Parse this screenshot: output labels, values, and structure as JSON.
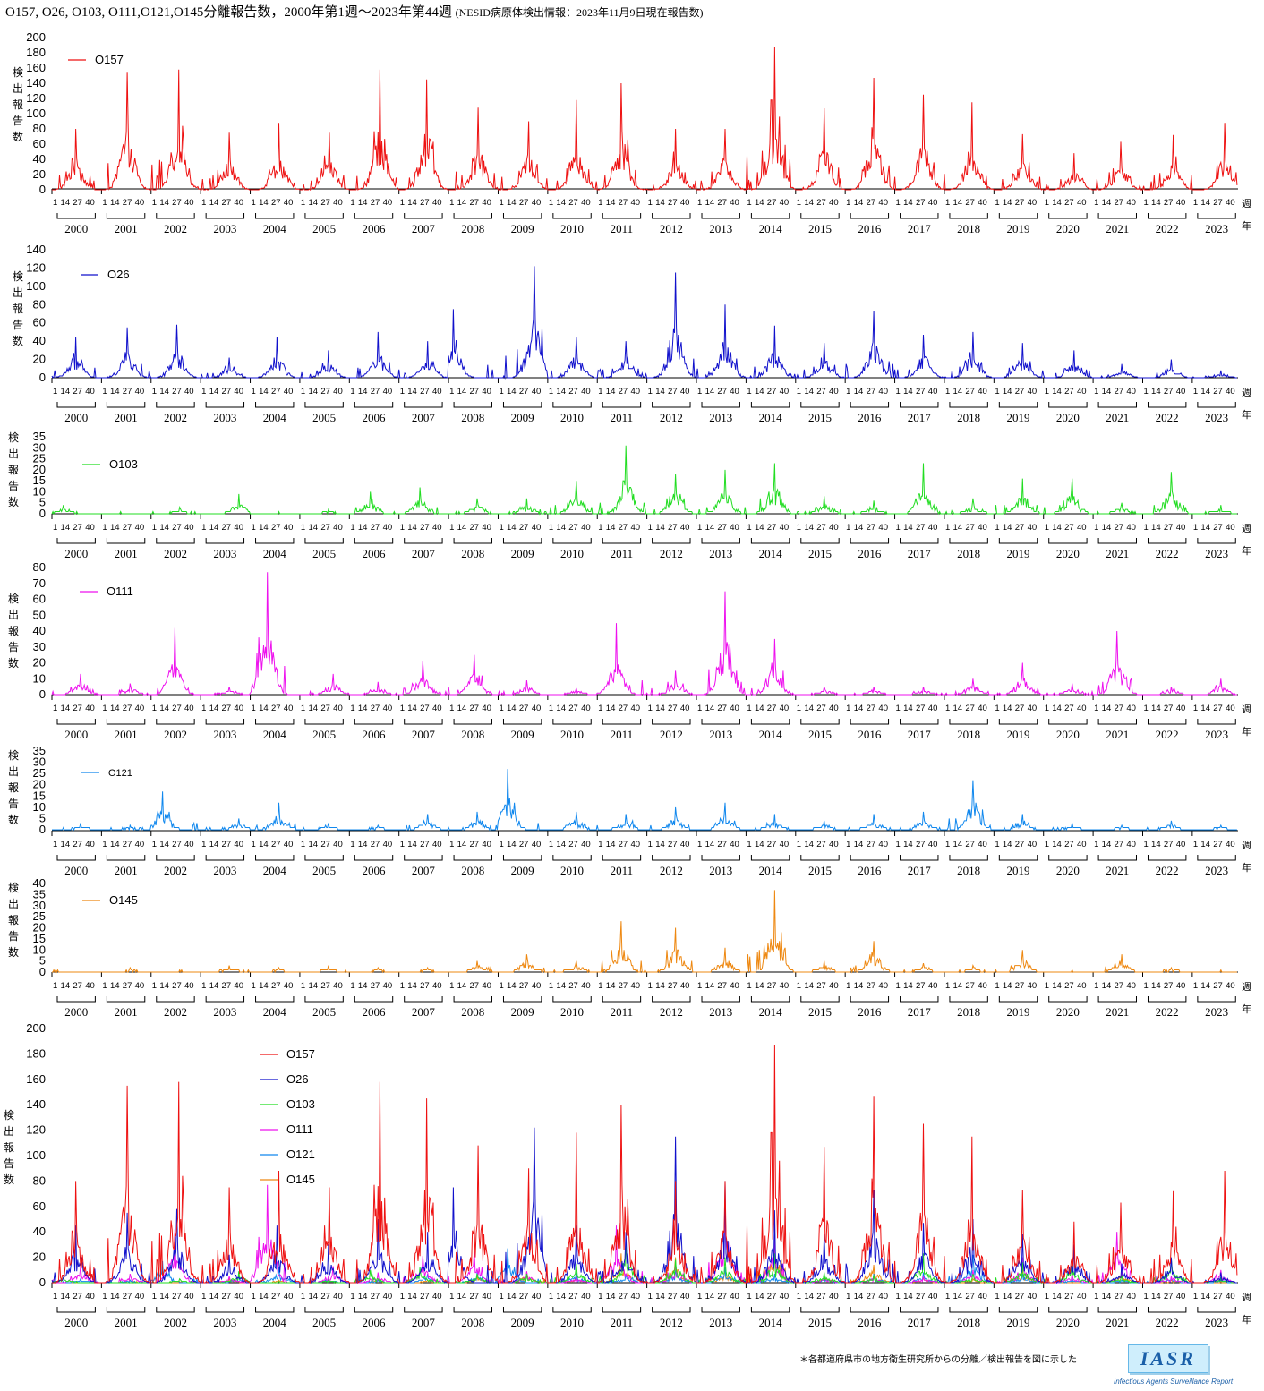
{
  "title": "O157, O26, O103, O111,O121,O145分離報告数，2000年第1週〜2023年第44週",
  "title_note": "(NESID病原体検出情報：2023年11月9日現在報告数)",
  "ylabel_chars": [
    "検",
    "出",
    "報",
    "告",
    "数"
  ],
  "x_unit_week": "週",
  "x_unit_year": "年",
  "week_ticks": [
    "1",
    "14",
    "27",
    "40"
  ],
  "years": [
    "2000",
    "2001",
    "2002",
    "2003",
    "2004",
    "2005",
    "2006",
    "2007",
    "2008",
    "2009",
    "2010",
    "2011",
    "2012",
    "2013",
    "2014",
    "2015",
    "2016",
    "2017",
    "2018",
    "2019",
    "2020",
    "2021",
    "2022",
    "2023"
  ],
  "footnote": "＊各都道府県市の地方衛生研究所からの分離／検出報告を図に示した",
  "logo": "IASR",
  "logo_sub": "Infectious Agents Surveillance Report",
  "chart_data": [
    {
      "type": "line",
      "series": [
        {
          "name": "O157",
          "color": "#ee1111"
        }
      ],
      "ylim": [
        0,
        200
      ],
      "yticks": [
        0,
        20,
        40,
        60,
        80,
        100,
        120,
        140,
        160,
        180,
        200
      ],
      "yearly_peaks": [
        [
          80,
          25
        ],
        [
          155,
          27
        ],
        [
          158,
          29
        ],
        [
          75,
          30
        ],
        [
          88,
          30
        ],
        [
          75,
          31
        ],
        [
          158,
          32
        ],
        [
          145,
          29
        ],
        [
          108,
          31
        ],
        [
          90,
          32
        ],
        [
          118,
          30
        ],
        [
          140,
          25
        ],
        [
          80,
          30
        ],
        [
          80,
          30
        ],
        [
          187,
          30
        ],
        [
          107,
          30
        ],
        [
          147,
          30
        ],
        [
          125,
          30
        ],
        [
          115,
          29
        ],
        [
          73,
          30
        ],
        [
          48,
          32
        ],
        [
          63,
          29
        ],
        [
          72,
          32
        ],
        [
          88,
          34
        ]
      ]
    },
    {
      "type": "line",
      "series": [
        {
          "name": "O26",
          "color": "#1111cc"
        }
      ],
      "ylim": [
        0,
        140
      ],
      "yticks": [
        0,
        20,
        40,
        60,
        80,
        100,
        120,
        140
      ],
      "yearly_peaks": [
        [
          45,
          25
        ],
        [
          55,
          27
        ],
        [
          58,
          27
        ],
        [
          22,
          30
        ],
        [
          45,
          28
        ],
        [
          30,
          30
        ],
        [
          50,
          30
        ],
        [
          40,
          30
        ],
        [
          75,
          5
        ],
        [
          122,
          38
        ],
        [
          45,
          30
        ],
        [
          40,
          30
        ],
        [
          115,
          30
        ],
        [
          80,
          30
        ],
        [
          57,
          30
        ],
        [
          38,
          30
        ],
        [
          73,
          30
        ],
        [
          47,
          30
        ],
        [
          50,
          30
        ],
        [
          38,
          30
        ],
        [
          30,
          32
        ],
        [
          15,
          30
        ],
        [
          20,
          30
        ],
        [
          8,
          30
        ]
      ]
    },
    {
      "type": "line",
      "series": [
        {
          "name": "O103",
          "color": "#22dd22"
        }
      ],
      "ylim": [
        0,
        35
      ],
      "yticks": [
        0,
        5,
        10,
        15,
        20,
        25,
        30,
        35
      ],
      "yearly_peaks": [
        [
          4,
          12
        ],
        [
          1,
          20
        ],
        [
          3,
          30
        ],
        [
          9,
          40
        ],
        [
          1,
          30
        ],
        [
          2,
          30
        ],
        [
          10,
          22
        ],
        [
          12,
          22
        ],
        [
          7,
          30
        ],
        [
          7,
          30
        ],
        [
          15,
          30
        ],
        [
          31,
          30
        ],
        [
          18,
          30
        ],
        [
          20,
          30
        ],
        [
          23,
          30
        ],
        [
          8,
          30
        ],
        [
          6,
          30
        ],
        [
          23,
          30
        ],
        [
          7,
          30
        ],
        [
          16,
          30
        ],
        [
          16,
          30
        ],
        [
          5,
          30
        ],
        [
          19,
          30
        ],
        [
          4,
          30
        ]
      ]
    },
    {
      "type": "line",
      "series": [
        {
          "name": "O111",
          "color": "#ee11ee"
        }
      ],
      "ylim": [
        0,
        80
      ],
      "yticks": [
        0,
        10,
        20,
        30,
        40,
        50,
        60,
        70,
        80
      ],
      "yearly_peaks": [
        [
          13,
          30
        ],
        [
          7,
          30
        ],
        [
          42,
          25
        ],
        [
          5,
          30
        ],
        [
          77,
          18
        ],
        [
          13,
          35
        ],
        [
          8,
          30
        ],
        [
          21,
          25
        ],
        [
          25,
          27
        ],
        [
          9,
          30
        ],
        [
          4,
          30
        ],
        [
          45,
          20
        ],
        [
          15,
          30
        ],
        [
          65,
          30
        ],
        [
          35,
          30
        ],
        [
          5,
          30
        ],
        [
          5,
          30
        ],
        [
          5,
          30
        ],
        [
          10,
          30
        ],
        [
          20,
          30
        ],
        [
          7,
          30
        ],
        [
          40,
          25
        ],
        [
          5,
          30
        ],
        [
          10,
          30
        ]
      ]
    },
    {
      "type": "line",
      "series": [
        {
          "name": "O121",
          "color": "#1188ee"
        }
      ],
      "ylim": [
        0,
        35
      ],
      "yticks": [
        0,
        5,
        10,
        15,
        20,
        25,
        30,
        35
      ],
      "yearly_peaks": [
        [
          3,
          30
        ],
        [
          2,
          30
        ],
        [
          17,
          12
        ],
        [
          5,
          40
        ],
        [
          12,
          30
        ],
        [
          3,
          30
        ],
        [
          2,
          30
        ],
        [
          7,
          30
        ],
        [
          8,
          30
        ],
        [
          27,
          10
        ],
        [
          8,
          30
        ],
        [
          7,
          30
        ],
        [
          10,
          30
        ],
        [
          12,
          30
        ],
        [
          7,
          30
        ],
        [
          4,
          30
        ],
        [
          7,
          30
        ],
        [
          8,
          30
        ],
        [
          22,
          30
        ],
        [
          7,
          30
        ],
        [
          3,
          30
        ],
        [
          2,
          30
        ],
        [
          4,
          30
        ],
        [
          2,
          30
        ]
      ]
    },
    {
      "type": "line",
      "series": [
        {
          "name": "O145",
          "color": "#ee8811"
        }
      ],
      "ylim": [
        0,
        40
      ],
      "yticks": [
        0,
        5,
        10,
        15,
        20,
        25,
        30,
        35,
        40
      ],
      "yearly_peaks": [
        [
          1,
          2
        ],
        [
          2,
          30
        ],
        [
          1,
          30
        ],
        [
          3,
          30
        ],
        [
          2,
          30
        ],
        [
          3,
          30
        ],
        [
          2,
          30
        ],
        [
          2,
          30
        ],
        [
          5,
          30
        ],
        [
          8,
          30
        ],
        [
          5,
          30
        ],
        [
          23,
          25
        ],
        [
          20,
          30
        ],
        [
          11,
          30
        ],
        [
          37,
          30
        ],
        [
          5,
          30
        ],
        [
          14,
          30
        ],
        [
          4,
          30
        ],
        [
          3,
          30
        ],
        [
          10,
          30
        ],
        [
          1,
          30
        ],
        [
          8,
          30
        ],
        [
          2,
          30
        ],
        [
          1,
          30
        ]
      ]
    },
    {
      "type": "line",
      "series": [
        {
          "name": "O157",
          "color": "#ee1111"
        },
        {
          "name": "O26",
          "color": "#1111cc"
        },
        {
          "name": "O103",
          "color": "#22dd22"
        },
        {
          "name": "O111",
          "color": "#ee11ee"
        },
        {
          "name": "O121",
          "color": "#1188ee"
        },
        {
          "name": "O145",
          "color": "#ee8811"
        }
      ],
      "ylim": [
        0,
        200
      ],
      "yticks": [
        0,
        20,
        40,
        60,
        80,
        100,
        120,
        140,
        160,
        180,
        200
      ]
    }
  ]
}
